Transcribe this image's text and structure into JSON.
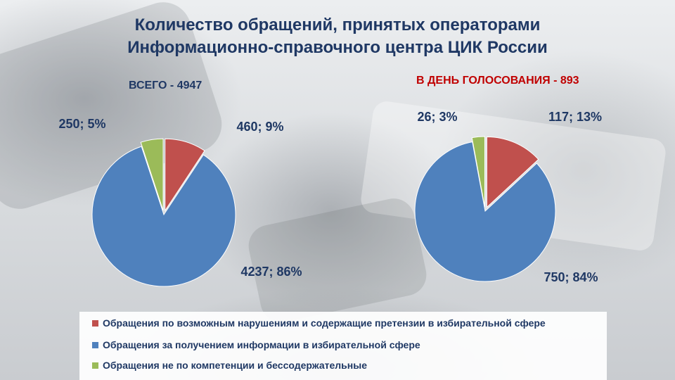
{
  "title_line1": "Количество обращений, принятых операторами",
  "title_line2": "Информационно-справочного центра ЦИК России",
  "colors": {
    "red": "#c0504d",
    "blue": "#4f81bd",
    "green": "#9bbb59",
    "label": "#1f3864",
    "highlight": "#c00000"
  },
  "legend": [
    {
      "label": "Обращения по возможным нарушениям и содержащие претензии в избирательной сфере",
      "color": "#c0504d"
    },
    {
      "label": "Обращения за получением информации в избирательной сфере",
      "color": "#4f81bd"
    },
    {
      "label": "Обращения не по компетенции и бессодержательные",
      "color": "#9bbb59"
    }
  ],
  "chart_data": [
    {
      "type": "pie",
      "subtitle": "ВСЕГО - 4947",
      "categories": [
        "Обращения по возможным нарушениям и содержащие претензии в избирательной сфере",
        "Обращения за получением информации в избирательной сфере",
        "Обращения не по компетенции и бессодержательные"
      ],
      "values": [
        460,
        4237,
        250
      ],
      "percentages": [
        9,
        86,
        5
      ],
      "data_labels": [
        "460; 9%",
        "4237; 86%",
        "250; 5%"
      ],
      "exploded": true
    },
    {
      "type": "pie",
      "subtitle": "В ДЕНЬ ГОЛОСОВАНИЯ  - 893",
      "categories": [
        "Обращения по возможным нарушениям и содержащие претензии в избирательной сфере",
        "Обращения за получением информации в избирательной сфере",
        "Обращения не по компетенции и бессодержательные"
      ],
      "values": [
        117,
        750,
        26
      ],
      "percentages": [
        13,
        84,
        3
      ],
      "data_labels": [
        "117; 13%",
        "750; 84%",
        "26; 3%"
      ],
      "exploded": true
    }
  ]
}
